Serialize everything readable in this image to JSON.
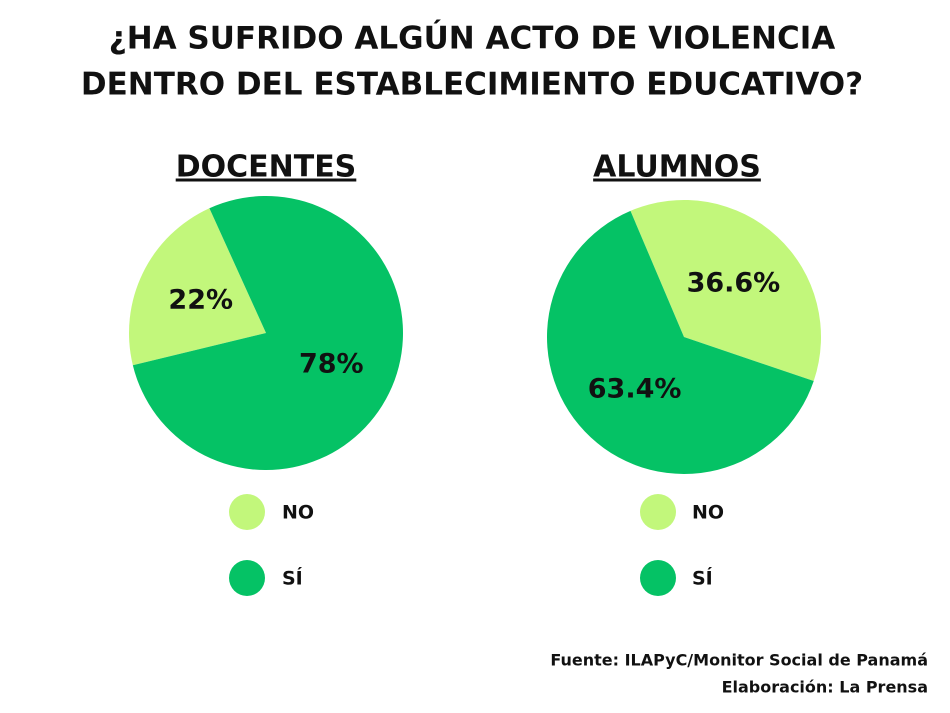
{
  "title": [
    "¿HA SUFRIDO ALGÚN ACTO DE VIOLENCIA",
    "DENTRO DEL ESTABLECIMIENTO EDUCATIVO?"
  ],
  "chart_data": [
    {
      "type": "pie",
      "title": "DOCENTES",
      "categories": [
        "NO",
        "SÍ"
      ],
      "values": [
        22,
        78
      ],
      "value_labels": [
        "22%",
        "78%"
      ],
      "colors": [
        "#c2f77b",
        "#05c265"
      ]
    },
    {
      "type": "pie",
      "title": "ALUMNOS",
      "categories": [
        "NO",
        "SÍ"
      ],
      "values": [
        36.6,
        63.4
      ],
      "value_labels": [
        "36.6%",
        "63.4%"
      ],
      "colors": [
        "#c2f77b",
        "#05c265"
      ]
    }
  ],
  "source": "Fuente: ILAPyC/Monitor Social de Panamá",
  "credit": "Elaboración: La Prensa"
}
